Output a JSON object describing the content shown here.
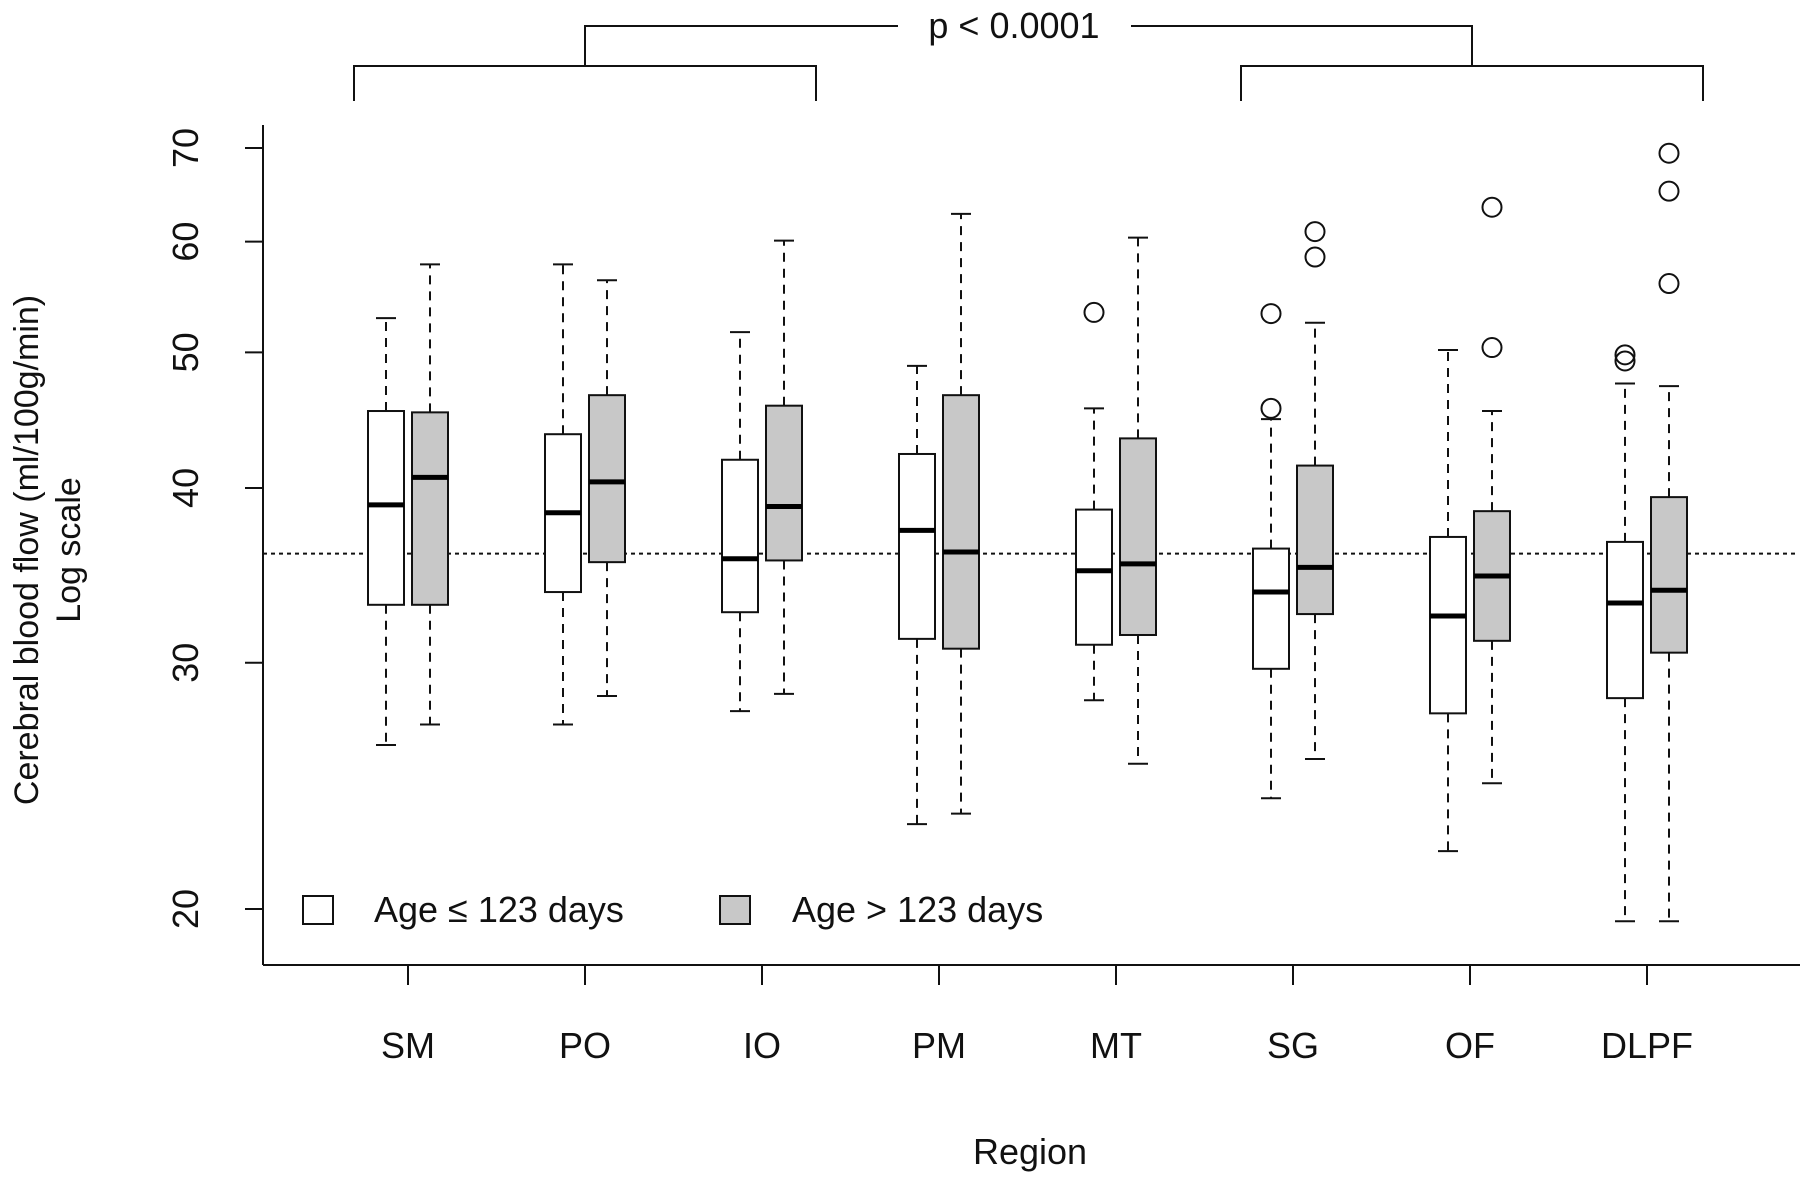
{
  "chart_data": {
    "type": "boxplot",
    "xlabel": "Region",
    "ylabel": "Cerebral blood flow (ml/100g/min)",
    "ylabel2": "Log scale",
    "y_scale": "log",
    "ylim": [
      19,
      72
    ],
    "y_ticks": [
      20,
      30,
      40,
      50,
      60,
      70
    ],
    "reference_line": 35.9,
    "annotation": "p < 0.0001",
    "legend_position": "bottom-left",
    "categories": [
      "SM",
      "PO",
      "IO",
      "PM",
      "MT",
      "SG",
      "OF",
      "DLPF"
    ],
    "series": [
      {
        "name": "Age ≤ 123 days",
        "color": "#ffffff",
        "boxes": [
          {
            "wlo": 26.2,
            "q1": 33.0,
            "med": 38.9,
            "q3": 45.4,
            "whi": 52.9,
            "outliers": []
          },
          {
            "wlo": 27.1,
            "q1": 33.7,
            "med": 38.4,
            "q3": 43.7,
            "whi": 57.8,
            "outliers": []
          },
          {
            "wlo": 27.7,
            "q1": 32.6,
            "med": 35.6,
            "q3": 41.9,
            "whi": 51.7,
            "outliers": []
          },
          {
            "wlo": 23.0,
            "q1": 31.2,
            "med": 37.3,
            "q3": 42.3,
            "whi": 48.9,
            "outliers": []
          },
          {
            "wlo": 28.2,
            "q1": 30.9,
            "med": 34.9,
            "q3": 38.6,
            "whi": 45.6,
            "outliers": [
              53.4
            ]
          },
          {
            "wlo": 24.0,
            "q1": 29.7,
            "med": 33.7,
            "q3": 36.2,
            "whi": 44.8,
            "outliers": [
              45.6,
              53.3
            ]
          },
          {
            "wlo": 22.0,
            "q1": 27.6,
            "med": 32.4,
            "q3": 36.9,
            "whi": 50.2,
            "outliers": []
          },
          {
            "wlo": 19.6,
            "q1": 28.3,
            "med": 33.1,
            "q3": 36.6,
            "whi": 47.5,
            "outliers": [
              49.3,
              49.8
            ]
          }
        ]
      },
      {
        "name": "Age > 123 days",
        "color": "#c8c8c8",
        "boxes": [
          {
            "wlo": 27.1,
            "q1": 33.0,
            "med": 40.7,
            "q3": 45.3,
            "whi": 57.8,
            "outliers": []
          },
          {
            "wlo": 28.4,
            "q1": 35.4,
            "med": 40.4,
            "q3": 46.6,
            "whi": 56.3,
            "outliers": []
          },
          {
            "wlo": 28.5,
            "q1": 35.5,
            "med": 38.8,
            "q3": 45.8,
            "whi": 60.1,
            "outliers": []
          },
          {
            "wlo": 23.4,
            "q1": 30.7,
            "med": 36.0,
            "q3": 46.6,
            "whi": 62.8,
            "outliers": []
          },
          {
            "wlo": 25.4,
            "q1": 31.4,
            "med": 35.3,
            "q3": 43.4,
            "whi": 60.4,
            "outliers": []
          },
          {
            "wlo": 25.6,
            "q1": 32.5,
            "med": 35.1,
            "q3": 41.5,
            "whi": 52.5,
            "outliers": [
              58.5,
              61.0
            ]
          },
          {
            "wlo": 24.6,
            "q1": 31.1,
            "med": 34.6,
            "q3": 38.5,
            "whi": 45.4,
            "outliers": [
              50.4,
              63.5
            ]
          },
          {
            "wlo": 19.6,
            "q1": 30.5,
            "med": 33.8,
            "q3": 39.4,
            "whi": 47.3,
            "outliers": [
              56.0,
              65.2,
              69.4
            ]
          }
        ]
      }
    ]
  }
}
